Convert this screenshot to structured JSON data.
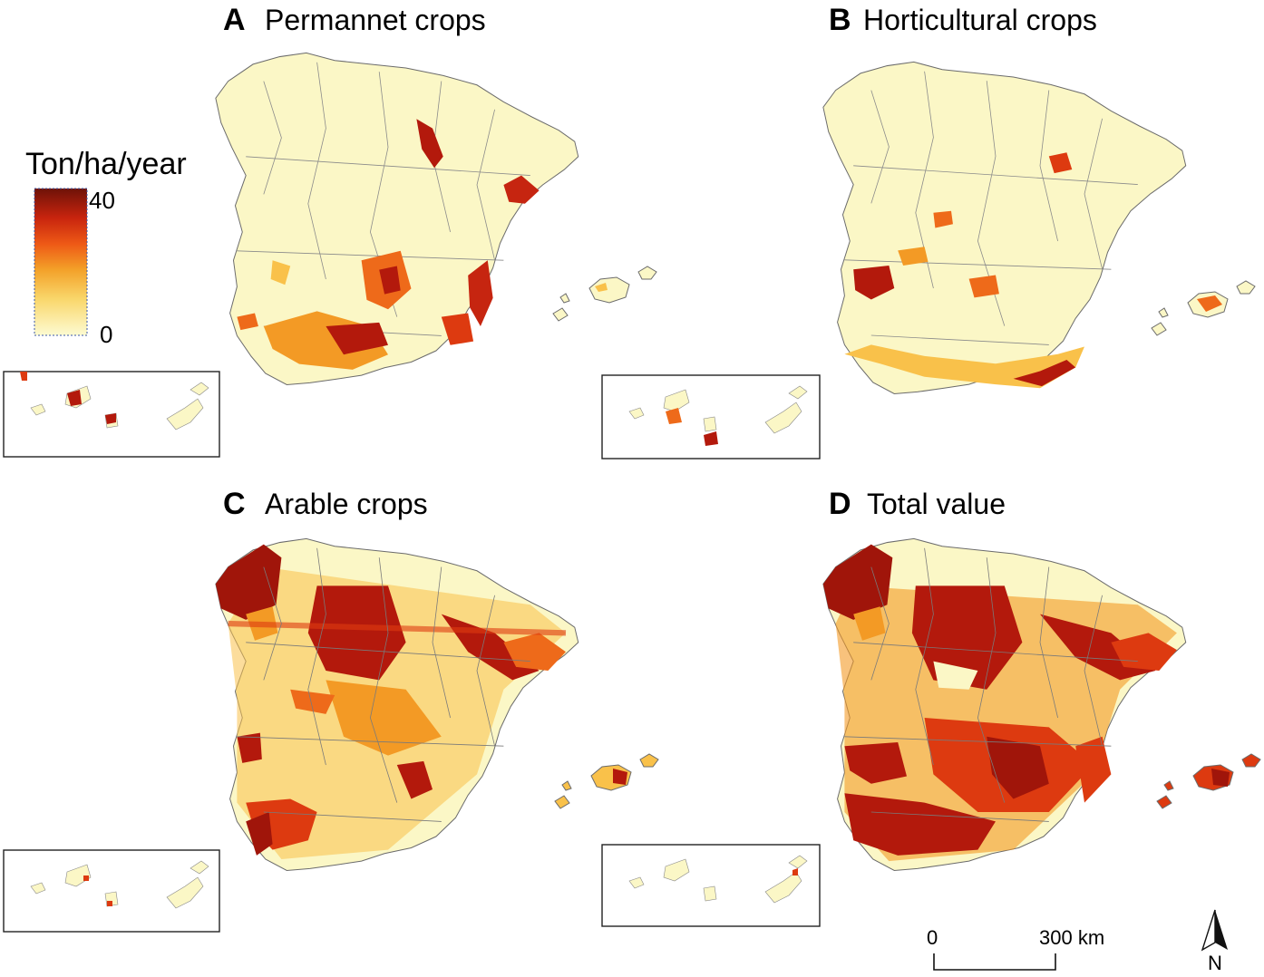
{
  "legend": {
    "title": "Ton/ha/year",
    "max_label": "40",
    "min_label": "0",
    "min": 0,
    "max": 40,
    "colors": [
      "#fdfbd2",
      "#fbe69a",
      "#f9c14a",
      "#f39a25",
      "#ee6a1a",
      "#dd3a10",
      "#b3190c",
      "#7a1208"
    ]
  },
  "panels": [
    {
      "letter": "A",
      "title": "Permannet crops"
    },
    {
      "letter": "B",
      "title": "Horticultural crops"
    },
    {
      "letter": "C",
      "title": "Arable crops"
    },
    {
      "letter": "D",
      "title": "Total value"
    }
  ],
  "scale_bar": {
    "start_label": "0",
    "end_label": "300 km"
  },
  "north_arrow": {
    "label": "N"
  },
  "colors": {
    "land_base": "#fbf7c6",
    "boundary": "#6b6b6b",
    "inset_border": "#222222"
  }
}
